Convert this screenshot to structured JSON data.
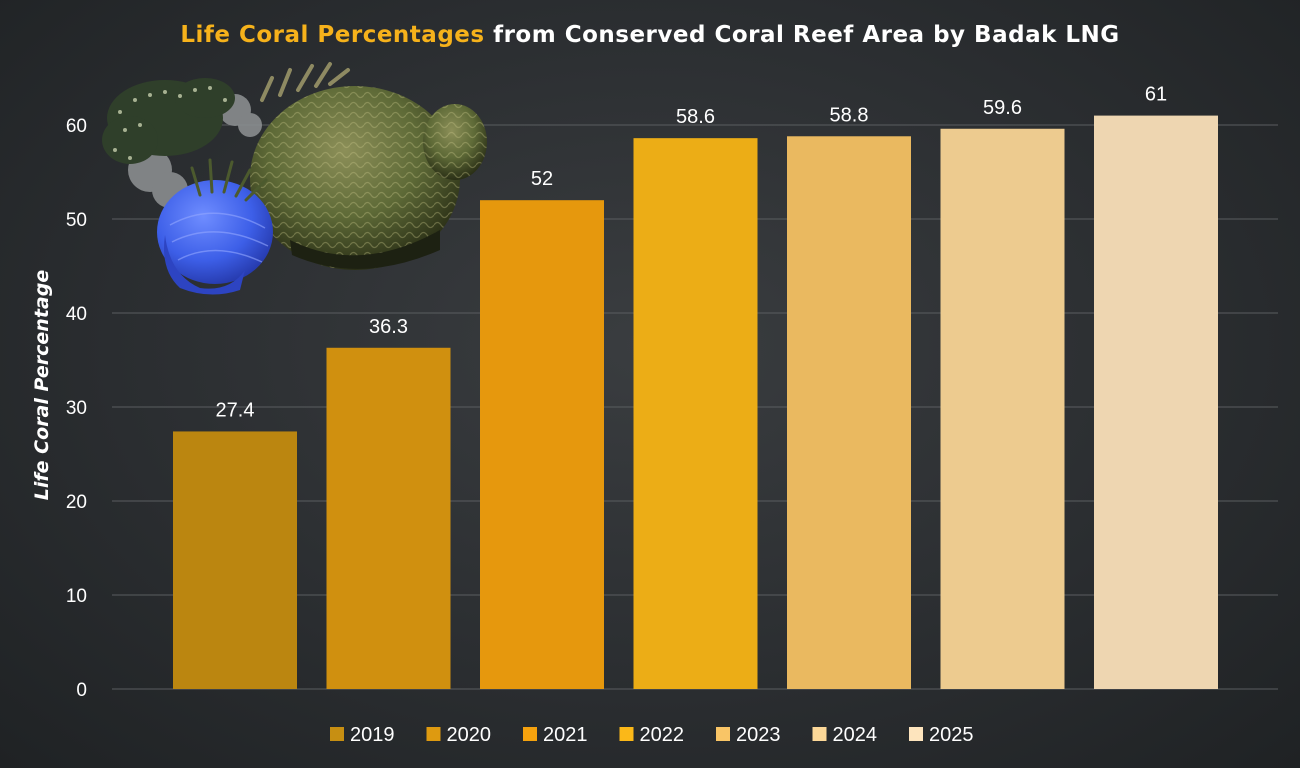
{
  "chart_data": {
    "type": "bar",
    "title_highlight": "Life Coral Percentages",
    "title_rest": " from Conserved Coral Reef Area by Badak LNG",
    "ylabel": "Life Coral Percentage",
    "xlabel": "",
    "ylim": [
      0,
      60
    ],
    "yticks": [
      0,
      10,
      20,
      30,
      40,
      50,
      60
    ],
    "grid": true,
    "legend_position": "bottom",
    "categories": [
      "2019",
      "2020",
      "2021",
      "2022",
      "2023",
      "2024",
      "2025"
    ],
    "values": [
      27.4,
      36.3,
      52,
      58.6,
      58.8,
      59.6,
      61
    ],
    "data_labels": [
      "27.4",
      "36.3",
      "52",
      "58.6",
      "58.8",
      "59.6",
      "61"
    ],
    "colors": [
      "#c78f12",
      "#de9a10",
      "#f5a20e",
      "#fbb818",
      "#f9c566",
      "#fcd898",
      "#fde4bd"
    ],
    "title_highlight_color": "#f6b21b",
    "title_rest_color": "#ffffff"
  },
  "decoration": {
    "image_name": "coral-illustration"
  }
}
